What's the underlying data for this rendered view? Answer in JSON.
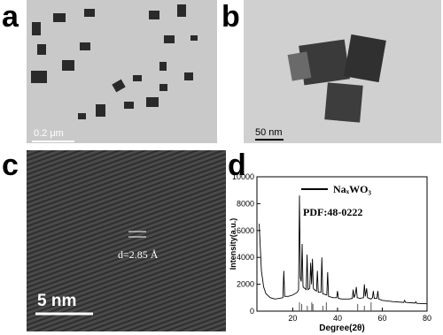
{
  "panels": {
    "a": {
      "label": "a",
      "scale_bar": "0.2 μm"
    },
    "b": {
      "label": "b",
      "scale_bar": "50 nm"
    },
    "c": {
      "label": "c",
      "scale_bar": "5 nm",
      "annotation": "d=2.85 Å"
    },
    "d": {
      "label": "d"
    }
  },
  "chart_data": {
    "type": "line",
    "xlabel": "Degree(2θ)",
    "ylabel": "Intensity(a.u.)",
    "annotation": "PDF:48-0222",
    "x": [
      5,
      6,
      7,
      8,
      10,
      12,
      14,
      15.6,
      16,
      16.4,
      18,
      20,
      22,
      22.6,
      23,
      23.4,
      23.8,
      24.2,
      24.6,
      26,
      26.4,
      26.8,
      27.6,
      28,
      28.4,
      28.8,
      29.2,
      29.6,
      30.6,
      31,
      31.4,
      32.6,
      33,
      33.4,
      35.2,
      35.6,
      36,
      38,
      39.6,
      40,
      40.4,
      42,
      45,
      46.6,
      47,
      47.4,
      48,
      48.4,
      48.8,
      50,
      51.6,
      52,
      52.4,
      53,
      53.4,
      55,
      55.6,
      56,
      56.4,
      57.6,
      58,
      58.4,
      60,
      65,
      69.6,
      70,
      70.4,
      74.6,
      75,
      75.4,
      80
    ],
    "series": [
      {
        "name": "NaₓWO₃",
        "color": "#000000",
        "values": [
          6500,
          3000,
          1800,
          1300,
          1000,
          900,
          950,
          1000,
          3000,
          1100,
          1100,
          1200,
          1400,
          1600,
          8600,
          2500,
          2200,
          5000,
          1800,
          1600,
          4200,
          1600,
          1700,
          3600,
          2000,
          3900,
          1700,
          1600,
          1500,
          3000,
          1400,
          1400,
          4000,
          1300,
          1200,
          2900,
          1100,
          1000,
          1000,
          1500,
          950,
          900,
          900,
          950,
          1600,
          1000,
          1300,
          1800,
          1000,
          950,
          1000,
          2000,
          1100,
          1700,
          1000,
          900,
          1000,
          1500,
          950,
          950,
          1500,
          900,
          800,
          700,
          650,
          800,
          650,
          600,
          700,
          580,
          550
        ]
      }
    ],
    "reference_peaks": [
      23,
      24,
      26.5,
      28.5,
      29,
      33.5,
      35,
      49,
      52,
      55
    ],
    "xlim": [
      4,
      80
    ],
    "ylim": [
      0,
      10000
    ],
    "xticks": [
      20,
      40,
      60,
      80
    ],
    "yticks": [
      0,
      2000,
      4000,
      6000,
      8000,
      10000
    ]
  }
}
